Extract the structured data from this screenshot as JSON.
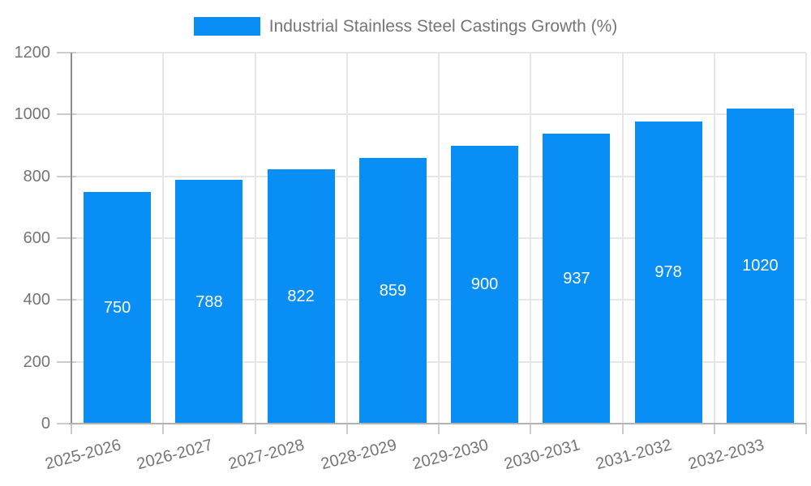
{
  "chart_data": {
    "type": "bar",
    "categories": [
      "2025-2026",
      "2026-2027",
      "2027-2028",
      "2028-2029",
      "2029-2030",
      "2030-2031",
      "2031-2032",
      "2032-2033"
    ],
    "series": [
      {
        "name": "Industrial Stainless Steel Castings Growth (%)",
        "values": [
          750,
          788,
          822,
          859,
          900,
          937,
          978,
          1020
        ]
      }
    ],
    "legend_entries": [
      "Industrial Stainless Steel Castings Growth (%)"
    ],
    "legend_position": "top",
    "ylim": [
      0,
      1200
    ],
    "yticks": [
      0,
      200,
      400,
      600,
      800,
      1000,
      1200
    ],
    "grid": true,
    "bar_value_labels_shown": true,
    "x_tick_rotation_deg": -15,
    "colors": {
      "bar": "#088ef4",
      "bar_label": "#ffffff",
      "axis_text": "#757575",
      "gridline": "#e6e6e6",
      "axis_line": "#8f8f8f",
      "baseline": "#b3b3b3",
      "tick": "#cccccc",
      "background": "#ffffff"
    }
  }
}
